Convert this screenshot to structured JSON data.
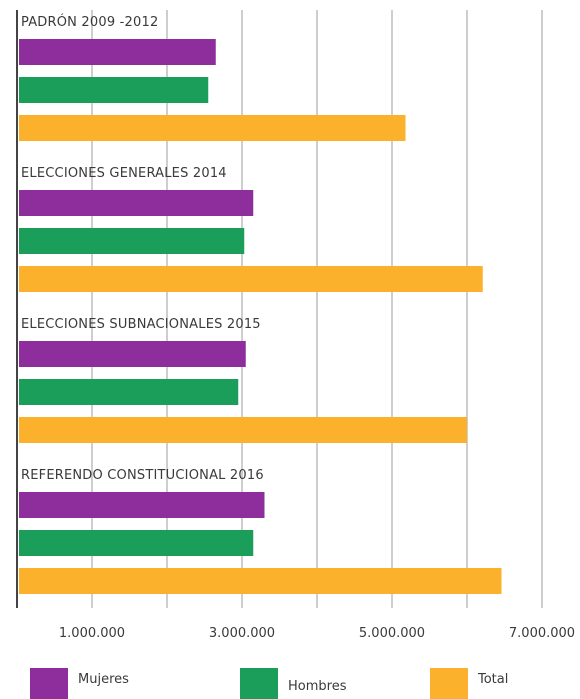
{
  "chart_data": {
    "type": "bar",
    "orientation": "horizontal",
    "groups": [
      "PADRÓN 2009 -2012",
      "ELECCIONES GENERALES 2014",
      "ELECCIONES  SUBNACIONALES 2015",
      "REFERENDO CONSTITUCIONAL 2016"
    ],
    "series": [
      {
        "name": "Mujeres",
        "color": "#8e2d9c",
        "values": [
          2650000,
          3150000,
          3050000,
          3300000
        ]
      },
      {
        "name": "Hombres",
        "color": "#1a9e5a",
        "values": [
          2550000,
          3030000,
          2950000,
          3150000
        ]
      },
      {
        "name": "Total",
        "color": "#fbb12b",
        "values": [
          5180000,
          6210000,
          6000000,
          6460000
        ]
      }
    ],
    "xlim": [
      0,
      7300000
    ],
    "ticks": [
      1000000,
      2000000,
      3000000,
      4000000,
      5000000,
      6000000,
      7000000
    ],
    "tick_labels": [
      "1.000.000",
      "",
      "3.000.000",
      "",
      "5.000.000",
      "",
      "7.000.000"
    ],
    "grid": true,
    "legend_position": "bottom",
    "title": "",
    "xlabel": "",
    "ylabel": ""
  }
}
